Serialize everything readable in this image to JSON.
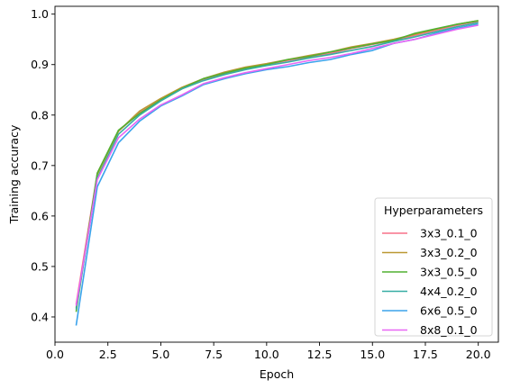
{
  "chart_data": {
    "type": "line",
    "xlabel": "Epoch",
    "ylabel": "Training accuracy",
    "xlim": [
      0.0,
      20.95
    ],
    "ylim": [
      0.35,
      1.0155
    ],
    "x_ticks": [
      0.0,
      2.5,
      5.0,
      7.5,
      10.0,
      12.5,
      15.0,
      17.5,
      20.0
    ],
    "x_tick_labels": [
      "0.0",
      "2.5",
      "5.0",
      "7.5",
      "10.0",
      "12.5",
      "15.0",
      "17.5",
      "20.0"
    ],
    "y_ticks": [
      0.4,
      0.5,
      0.6,
      0.7,
      0.8,
      0.9,
      1.0
    ],
    "y_tick_labels": [
      "0.4",
      "0.5",
      "0.6",
      "0.7",
      "0.8",
      "0.9",
      "1.0"
    ],
    "grid": false,
    "legend": {
      "title": "Hyperparameters",
      "placement": "lower-right"
    },
    "x": [
      1,
      2,
      3,
      4,
      5,
      6,
      7,
      8,
      9,
      10,
      11,
      12,
      13,
      14,
      15,
      16,
      17,
      18,
      19,
      20
    ],
    "series": [
      {
        "name": "3x3_0.1_0",
        "color": "#f77189",
        "values": [
          0.425,
          0.685,
          0.768,
          0.805,
          0.83,
          0.852,
          0.87,
          0.882,
          0.892,
          0.9,
          0.908,
          0.915,
          0.922,
          0.932,
          0.94,
          0.948,
          0.958,
          0.968,
          0.978,
          0.986
        ]
      },
      {
        "name": "3x3_0.2_0",
        "color": "#bb9832",
        "values": [
          0.418,
          0.682,
          0.768,
          0.808,
          0.833,
          0.855,
          0.872,
          0.885,
          0.895,
          0.902,
          0.91,
          0.918,
          0.925,
          0.935,
          0.942,
          0.95,
          0.96,
          0.97,
          0.98,
          0.987
        ]
      },
      {
        "name": "3x3_0.5_0",
        "color": "#50b131",
        "values": [
          0.41,
          0.685,
          0.77,
          0.803,
          0.83,
          0.853,
          0.872,
          0.883,
          0.893,
          0.9,
          0.91,
          0.916,
          0.925,
          0.933,
          0.941,
          0.948,
          0.962,
          0.971,
          0.98,
          0.987
        ]
      },
      {
        "name": "4x4_0.2_0",
        "color": "#36ada4",
        "values": [
          0.415,
          0.675,
          0.762,
          0.8,
          0.828,
          0.852,
          0.868,
          0.88,
          0.89,
          0.898,
          0.905,
          0.913,
          0.92,
          0.928,
          0.936,
          0.946,
          0.955,
          0.965,
          0.975,
          0.983
        ]
      },
      {
        "name": "6x6_0.5_0",
        "color": "#3ba3ec",
        "values": [
          0.383,
          0.658,
          0.745,
          0.788,
          0.818,
          0.838,
          0.86,
          0.872,
          0.882,
          0.89,
          0.896,
          0.904,
          0.91,
          0.92,
          0.928,
          0.942,
          0.95,
          0.962,
          0.972,
          0.98
        ]
      },
      {
        "name": "8x8_0.1_0",
        "color": "#e866f4",
        "values": [
          0.422,
          0.672,
          0.755,
          0.792,
          0.82,
          0.84,
          0.862,
          0.874,
          0.884,
          0.892,
          0.9,
          0.908,
          0.914,
          0.922,
          0.932,
          0.942,
          0.95,
          0.96,
          0.97,
          0.978
        ]
      }
    ]
  }
}
